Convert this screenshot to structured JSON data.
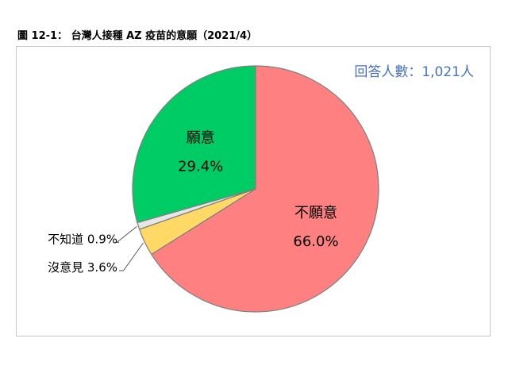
{
  "title": "圖 12-1： 台灣人接種 AZ 疫苗的意願（2021/4）",
  "respondents_label": "回答人數：1,021人",
  "colors": {
    "willing": "#00cc66",
    "unwilling": "#ff8080",
    "no_opinion": "#ffd966",
    "dont_know": "#e6e6e6",
    "respondents_text": "#4472c4"
  },
  "chart_data": {
    "type": "pie",
    "title": "圖 12-1： 台灣人接種 AZ 疫苗的意願（2021/4）",
    "slices": [
      {
        "name": "不願意",
        "value": 66.0,
        "value_label": "66.0%",
        "color": "#ff8080"
      },
      {
        "name": "沒意見",
        "value": 3.6,
        "value_label": "3.6%",
        "color": "#ffd966"
      },
      {
        "name": "不知道",
        "value": 0.9,
        "value_label": "0.9%",
        "color": "#e6e6e6"
      },
      {
        "name": "願意",
        "value": 29.4,
        "value_label": "29.4%",
        "color": "#00cc66"
      }
    ]
  }
}
